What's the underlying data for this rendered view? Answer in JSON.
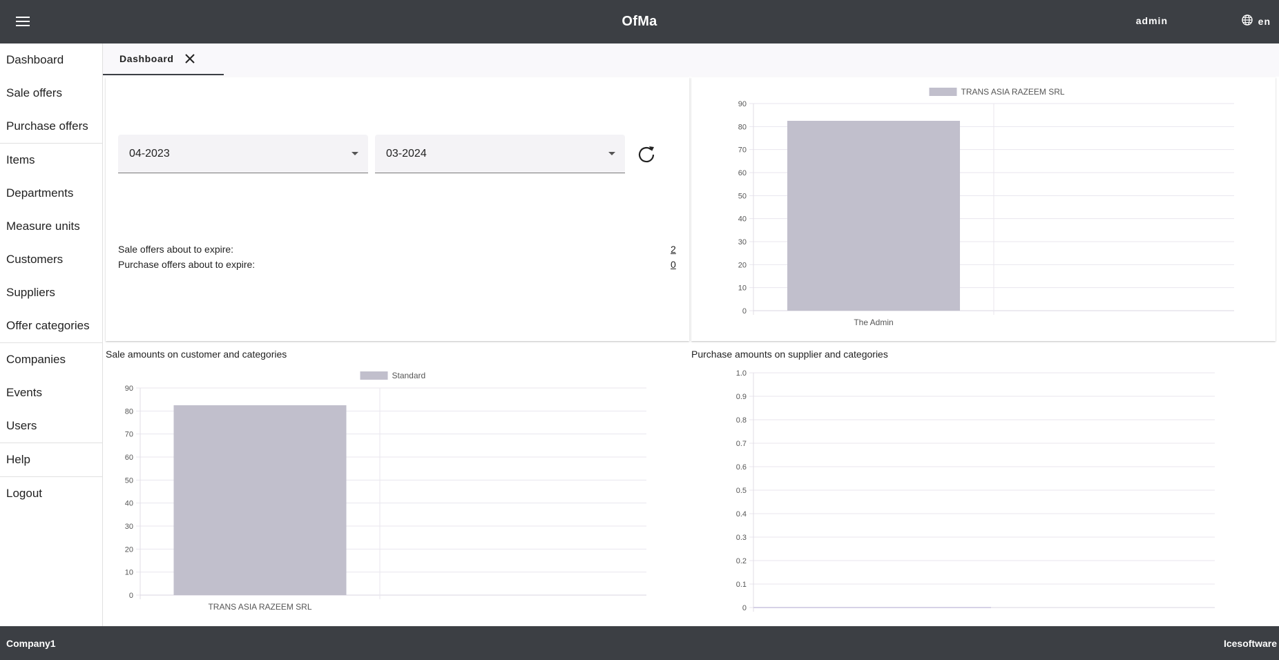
{
  "header": {
    "app_title": "OfMa",
    "user": "admin",
    "language": "en",
    "icons": [
      "menu-icon",
      "globe-icon"
    ]
  },
  "sidebar": {
    "items": [
      {
        "label": "Dashboard"
      },
      {
        "label": "Sale offers"
      },
      {
        "label": "Purchase offers"
      },
      {
        "label": "Items"
      },
      {
        "label": "Departments"
      },
      {
        "label": "Measure units"
      },
      {
        "label": "Customers"
      },
      {
        "label": "Suppliers"
      },
      {
        "label": "Offer categories"
      },
      {
        "label": "Companies"
      },
      {
        "label": "Events"
      },
      {
        "label": "Users"
      },
      {
        "label": "Help"
      },
      {
        "label": "Logout"
      }
    ]
  },
  "tabs": [
    {
      "label": "Dashboard",
      "icon": "close-icon"
    }
  ],
  "filters": {
    "from": "04-2023",
    "to": "03-2024",
    "refresh_icon": "refresh-icon"
  },
  "expiring": {
    "sale_label": "Sale offers about to expire:",
    "sale_value": "2",
    "purchase_label": "Purchase offers about to expire:",
    "purchase_value": "0"
  },
  "charts": {
    "sale_title": "Sale amounts on customer and categories",
    "purchase_title": "Purchase amounts on supplier and categories"
  },
  "chart_data": [
    {
      "type": "bar",
      "title": "",
      "categories": [
        "The Admin"
      ],
      "series": [
        {
          "name": "TRANS ASIA RAZEEM SRL",
          "values": [
            82.5
          ]
        }
      ],
      "ylim": [
        0,
        90
      ],
      "yticks": [
        "0",
        "10",
        "20",
        "30",
        "40",
        "50",
        "60",
        "70",
        "80",
        "90"
      ],
      "grid": true,
      "legend": "top",
      "bar_color": "#c1bfcc"
    },
    {
      "type": "bar",
      "title": "Sale amounts on customer and categories",
      "categories": [
        "TRANS ASIA RAZEEM SRL"
      ],
      "series": [
        {
          "name": "Standard",
          "values": [
            82.5
          ]
        }
      ],
      "ylim": [
        0,
        90
      ],
      "yticks": [
        "0",
        "10",
        "20",
        "30",
        "40",
        "50",
        "60",
        "70",
        "80",
        "90"
      ],
      "grid": true,
      "legend": "top",
      "bar_color": "#c1bfcc"
    },
    {
      "type": "bar",
      "title": "Purchase amounts on supplier and categories",
      "categories": [],
      "series": [],
      "ylim": [
        0,
        1.0
      ],
      "yticks": [
        "0",
        "0.1",
        "0.2",
        "0.3",
        "0.4",
        "0.5",
        "0.6",
        "0.7",
        "0.8",
        "0.9",
        "1.0"
      ],
      "grid": true
    }
  ],
  "footer": {
    "company": "Company1",
    "vendor": "Icesoftware"
  }
}
